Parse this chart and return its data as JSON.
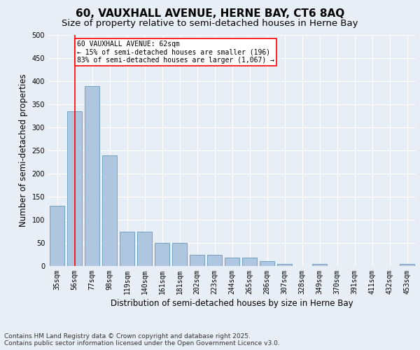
{
  "title_line1": "60, VAUXHALL AVENUE, HERNE BAY, CT6 8AQ",
  "title_line2": "Size of property relative to semi-detached houses in Herne Bay",
  "xlabel": "Distribution of semi-detached houses by size in Herne Bay",
  "ylabel": "Number of semi-detached properties",
  "categories": [
    "35sqm",
    "56sqm",
    "77sqm",
    "98sqm",
    "119sqm",
    "140sqm",
    "161sqm",
    "181sqm",
    "202sqm",
    "223sqm",
    "244sqm",
    "265sqm",
    "286sqm",
    "307sqm",
    "328sqm",
    "349sqm",
    "370sqm",
    "391sqm",
    "411sqm",
    "432sqm",
    "453sqm"
  ],
  "values": [
    130,
    335,
    390,
    240,
    75,
    75,
    50,
    50,
    25,
    25,
    18,
    18,
    10,
    5,
    0,
    5,
    0,
    0,
    0,
    0,
    5
  ],
  "bar_color": "#aec6df",
  "bar_edge_color": "#6699bb",
  "vline_x": 1,
  "vline_color": "red",
  "annotation_text": "60 VAUXHALL AVENUE: 62sqm\n← 15% of semi-detached houses are smaller (196)\n83% of semi-detached houses are larger (1,067) →",
  "annotation_box_color": "white",
  "annotation_box_edge": "red",
  "ylim": [
    0,
    500
  ],
  "yticks": [
    0,
    50,
    100,
    150,
    200,
    250,
    300,
    350,
    400,
    450,
    500
  ],
  "footer_text": "Contains HM Land Registry data © Crown copyright and database right 2025.\nContains public sector information licensed under the Open Government Licence v3.0.",
  "bg_color": "#e8eef5",
  "plot_bg_color": "#e8eef5",
  "grid_color": "white",
  "title_fontsize": 11,
  "subtitle_fontsize": 9.5,
  "tick_fontsize": 7,
  "label_fontsize": 8.5,
  "footer_fontsize": 6.5,
  "annot_fontsize": 7
}
